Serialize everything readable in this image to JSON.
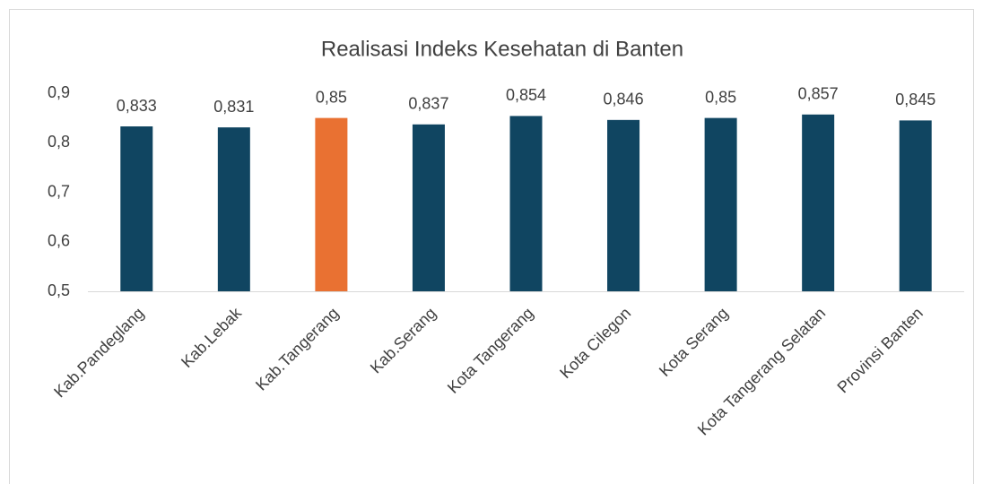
{
  "chart_data": {
    "type": "bar",
    "title": "Realisasi Indeks Kesehatan di Banten",
    "categories": [
      "Kab.Pandeglang",
      "Kab.Lebak",
      "Kab.Tangerang",
      "Kab.Serang",
      "Kota Tangerang",
      "Kota Cilegon",
      "Kota Serang",
      "Kota Tangerang Selatan",
      "Provinsi Banten"
    ],
    "values": [
      0.833,
      0.831,
      0.85,
      0.837,
      0.854,
      0.846,
      0.85,
      0.857,
      0.845
    ],
    "value_labels": [
      "0,833",
      "0,831",
      "0,85",
      "0,837",
      "0,854",
      "0,846",
      "0,85",
      "0,857",
      "0,845"
    ],
    "colors": [
      "#104561",
      "#104561",
      "#e97132",
      "#104561",
      "#104561",
      "#104561",
      "#104561",
      "#104561",
      "#104561"
    ],
    "ylim": [
      0.5,
      0.9
    ],
    "yticks": [
      {
        "value": 0.5,
        "label": "0,5"
      },
      {
        "value": 0.6,
        "label": "0,6"
      },
      {
        "value": 0.7,
        "label": "0,7"
      },
      {
        "value": 0.8,
        "label": "0,8"
      },
      {
        "value": 0.9,
        "label": "0,9"
      }
    ],
    "grid": false
  }
}
